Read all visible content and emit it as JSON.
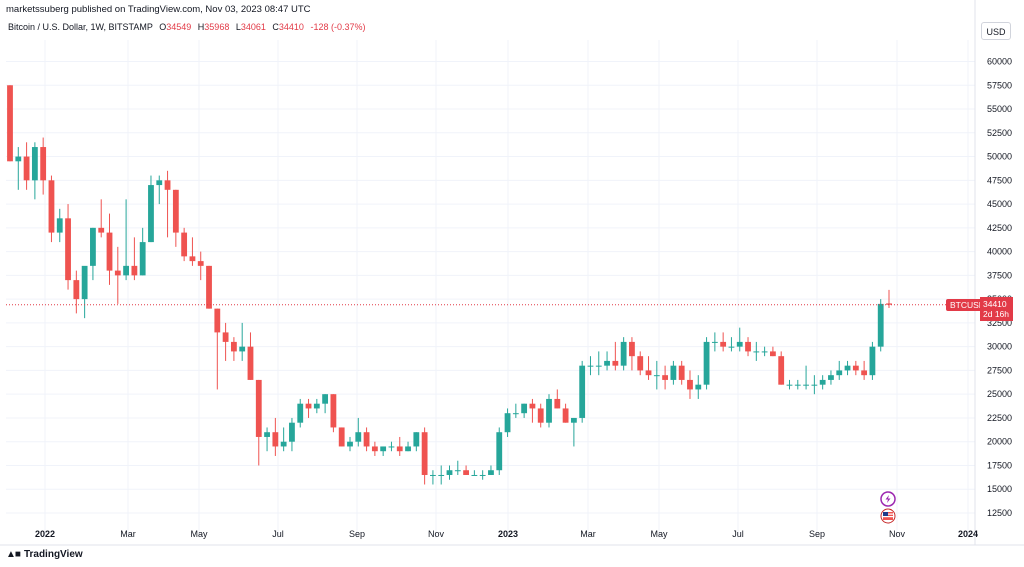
{
  "header": {
    "published": "marketssuberg published on TradingView.com, Nov 03, 2023 08:47 UTC",
    "symbol": "Bitcoin / U.S. Dollar, 1W, BITSTAMP",
    "o_label": "O",
    "o_value": "34549",
    "h_label": "H",
    "h_value": "35968",
    "l_label": "L",
    "l_value": "34061",
    "c_label": "C",
    "c_value": "34410",
    "change": "-128 (-0.37%)",
    "currency": "USD"
  },
  "price_marker": {
    "ticker": "BTCUSD",
    "price": "34410",
    "countdown": "2d 16h"
  },
  "footer": {
    "brand": "TradingView"
  },
  "colors": {
    "up": "#26a69a",
    "down": "#ef5350",
    "line": "#e23a47",
    "grid": "#f0f3fa"
  },
  "icons": [
    "lightning-event-icon",
    "us-flag-event-icon"
  ],
  "chart_data": {
    "type": "candlestick",
    "title": "Bitcoin / U.S. Dollar, 1W, BITSTAMP",
    "ylim": [
      10000,
      62500
    ],
    "y_ticks": [
      12500,
      15000,
      17500,
      20000,
      22500,
      25000,
      27500,
      30000,
      32500,
      35000,
      37500,
      40000,
      42500,
      45000,
      47500,
      50000,
      52500,
      55000,
      57500,
      60000
    ],
    "x_labels": [
      "2022",
      "Mar",
      "May",
      "Jul",
      "Sep",
      "Nov",
      "2023",
      "Mar",
      "May",
      "Jul",
      "Sep",
      "Nov",
      "2024"
    ],
    "last_price": 34410,
    "candles": [
      [
        57500,
        57500,
        49500,
        49500
      ],
      [
        49500,
        51000,
        46500,
        50000
      ],
      [
        50000,
        51500,
        46500,
        47500
      ],
      [
        47500,
        51500,
        45500,
        51000
      ],
      [
        51000,
        52000,
        46000,
        47500
      ],
      [
        47500,
        48000,
        41000,
        42000
      ],
      [
        42000,
        44500,
        41000,
        43500
      ],
      [
        43500,
        45000,
        36000,
        37000
      ],
      [
        37000,
        38000,
        33500,
        35000
      ],
      [
        35000,
        38000,
        33000,
        38500
      ],
      [
        38500,
        42500,
        37000,
        42500
      ],
      [
        42500,
        45500,
        41500,
        42000
      ],
      [
        42000,
        44000,
        36500,
        38000
      ],
      [
        38000,
        40500,
        34500,
        37500
      ],
      [
        37500,
        45500,
        37000,
        38500
      ],
      [
        38500,
        41500,
        37000,
        37500
      ],
      [
        37500,
        42500,
        37500,
        41000
      ],
      [
        41000,
        48000,
        41000,
        47000
      ],
      [
        47000,
        48000,
        45000,
        47500
      ],
      [
        47500,
        48500,
        41500,
        46500
      ],
      [
        46500,
        46500,
        40500,
        42000
      ],
      [
        42000,
        42500,
        39000,
        39500
      ],
      [
        39500,
        41500,
        38500,
        39000
      ],
      [
        39000,
        40000,
        37000,
        38500
      ],
      [
        38500,
        38500,
        34000,
        34000
      ],
      [
        34000,
        34000,
        25500,
        31500
      ],
      [
        31500,
        32500,
        28500,
        30500
      ],
      [
        30500,
        31000,
        28500,
        29500
      ],
      [
        29500,
        32500,
        28500,
        30000
      ],
      [
        30000,
        31500,
        26500,
        26500
      ],
      [
        26500,
        26500,
        17500,
        20500
      ],
      [
        20500,
        21500,
        19000,
        21000
      ],
      [
        21000,
        22500,
        18500,
        19500
      ],
      [
        19500,
        21500,
        19000,
        20000
      ],
      [
        20000,
        22500,
        19000,
        22000
      ],
      [
        22000,
        24500,
        21500,
        24000
      ],
      [
        24000,
        24500,
        22500,
        23500
      ],
      [
        23500,
        24500,
        23000,
        24000
      ],
      [
        24000,
        25000,
        23000,
        25000
      ],
      [
        25000,
        25000,
        21000,
        21500
      ],
      [
        21500,
        21500,
        19500,
        19500
      ],
      [
        19500,
        20500,
        19000,
        20000
      ],
      [
        20000,
        22500,
        19500,
        21000
      ],
      [
        21000,
        21500,
        19000,
        19500
      ],
      [
        19500,
        20000,
        18500,
        19000
      ],
      [
        19000,
        19500,
        18500,
        19500
      ],
      [
        19500,
        20000,
        19000,
        19500
      ],
      [
        19500,
        20500,
        18500,
        19000
      ],
      [
        19000,
        20000,
        19000,
        19500
      ],
      [
        19500,
        21000,
        19000,
        21000
      ],
      [
        21000,
        21500,
        15500,
        16500
      ],
      [
        16500,
        17000,
        15500,
        16500
      ],
      [
        16500,
        17500,
        15500,
        16500
      ],
      [
        16500,
        17500,
        16000,
        17000
      ],
      [
        17000,
        18000,
        16500,
        17000
      ],
      [
        17000,
        17500,
        16500,
        16500
      ],
      [
        16500,
        17000,
        16500,
        16500
      ],
      [
        16500,
        17000,
        16000,
        16500
      ],
      [
        16500,
        17500,
        16500,
        17000
      ],
      [
        17000,
        21500,
        16500,
        21000
      ],
      [
        21000,
        23500,
        20500,
        23000
      ],
      [
        23000,
        24000,
        22500,
        23000
      ],
      [
        23000,
        24000,
        22500,
        24000
      ],
      [
        24000,
        24500,
        22000,
        23500
      ],
      [
        23500,
        24000,
        21500,
        22000
      ],
      [
        22000,
        25000,
        21500,
        24500
      ],
      [
        24500,
        25500,
        23500,
        23500
      ],
      [
        23500,
        24000,
        22000,
        22000
      ],
      [
        22000,
        22500,
        19500,
        22500
      ],
      [
        22500,
        28500,
        22000,
        28000
      ],
      [
        28000,
        29000,
        27000,
        28000
      ],
      [
        28000,
        29500,
        27000,
        28000
      ],
      [
        28000,
        29500,
        27500,
        28500
      ],
      [
        28500,
        30500,
        27500,
        28000
      ],
      [
        28000,
        31000,
        27500,
        30500
      ],
      [
        30500,
        31000,
        27500,
        29000
      ],
      [
        29000,
        29500,
        27000,
        27500
      ],
      [
        27500,
        29000,
        26500,
        27000
      ],
      [
        27000,
        28500,
        25500,
        27000
      ],
      [
        27000,
        28000,
        25500,
        26500
      ],
      [
        26500,
        28500,
        26000,
        28000
      ],
      [
        28000,
        28500,
        26000,
        26500
      ],
      [
        26500,
        27500,
        24500,
        25500
      ],
      [
        25500,
        27000,
        24500,
        26000
      ],
      [
        26000,
        31000,
        25500,
        30500
      ],
      [
        30500,
        31500,
        29500,
        30500
      ],
      [
        30500,
        31500,
        29500,
        30000
      ],
      [
        30000,
        31000,
        29500,
        30000
      ],
      [
        30000,
        32000,
        29500,
        30500
      ],
      [
        30500,
        31000,
        29000,
        29500
      ],
      [
        29500,
        30500,
        28500,
        29500
      ],
      [
        29500,
        30000,
        29000,
        29500
      ],
      [
        29500,
        30000,
        29000,
        29000
      ],
      [
        29000,
        29500,
        26000,
        26000
      ],
      [
        26000,
        26500,
        25500,
        26000
      ],
      [
        26000,
        26500,
        25500,
        26000
      ],
      [
        26000,
        28000,
        25500,
        26000
      ],
      [
        26000,
        27000,
        25000,
        26000
      ],
      [
        26000,
        27000,
        25500,
        26500
      ],
      [
        26500,
        27500,
        26000,
        27000
      ],
      [
        27000,
        28500,
        26500,
        27500
      ],
      [
        27500,
        28500,
        27000,
        28000
      ],
      [
        28000,
        28500,
        27000,
        27500
      ],
      [
        27500,
        28500,
        26500,
        27000
      ],
      [
        27000,
        30500,
        26500,
        30000
      ],
      [
        30000,
        35000,
        29500,
        34500
      ],
      [
        34549,
        35968,
        34061,
        34410
      ]
    ]
  }
}
